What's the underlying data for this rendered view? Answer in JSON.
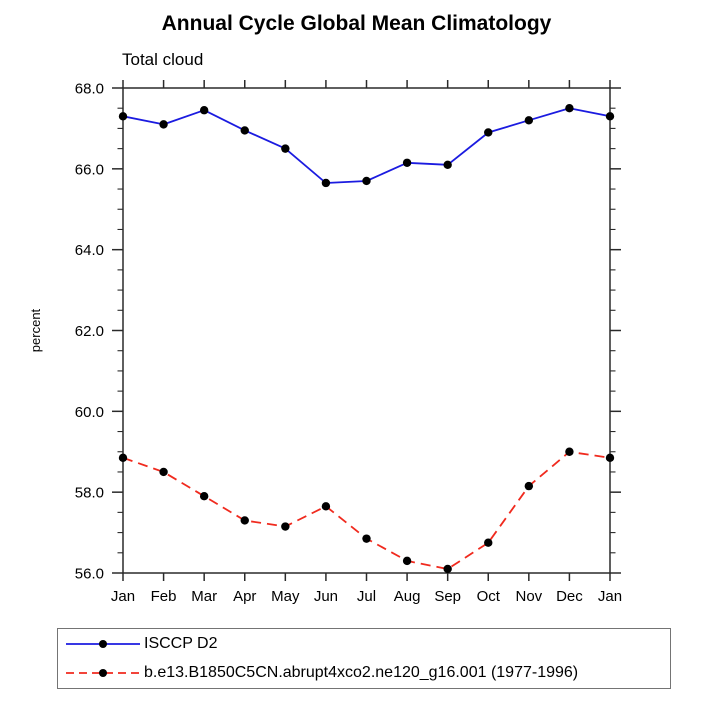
{
  "chart_data": {
    "type": "line",
    "title": "Annual Cycle Global Mean Climatology",
    "subtitle": "Total cloud",
    "ylabel": "percent",
    "x": [
      "Jan",
      "Feb",
      "Mar",
      "Apr",
      "May",
      "Jun",
      "Jul",
      "Aug",
      "Sep",
      "Oct",
      "Nov",
      "Dec",
      "Jan"
    ],
    "ylim": [
      56,
      68
    ],
    "ytick_major_step": 2,
    "ytick_minor_step": 0.5,
    "ytick_labels": [
      "56.0",
      "58.0",
      "60.0",
      "62.0",
      "64.0",
      "66.0",
      "68.0"
    ],
    "grid": false,
    "legend_position": "bottom-left",
    "axis_color": "#2a2a2a",
    "marker_color": "#000000",
    "series": [
      {
        "name": "ISCCP D2",
        "color": "#1b1be0",
        "style": "solid",
        "marker": "black-dot",
        "values": [
          67.3,
          67.1,
          67.45,
          66.95,
          66.5,
          65.65,
          65.7,
          66.15,
          66.1,
          66.9,
          67.2,
          67.5,
          67.3
        ]
      },
      {
        "name": "b.e13.B1850C5CN.abrupt4xco2.ne120_g16.001 (1977-1996)",
        "color": "#f02a1e",
        "style": "dashed",
        "marker": "black-dot",
        "values": [
          58.85,
          58.5,
          57.9,
          57.3,
          57.15,
          57.65,
          56.85,
          56.3,
          56.1,
          56.75,
          58.15,
          59.0,
          58.85
        ]
      }
    ]
  }
}
